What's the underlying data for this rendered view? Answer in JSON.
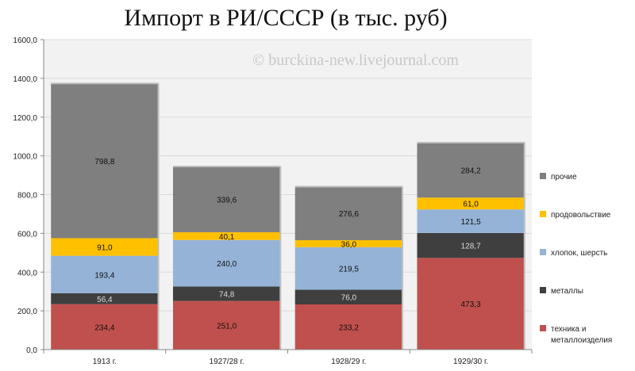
{
  "title": "Импорт в РИ/СССР (в тыс. руб)",
  "watermark": "© burckina-new.livejournal.com",
  "chart_data": {
    "type": "bar",
    "stacked": true,
    "title": "Импорт в РИ/СССР (в тыс. руб)",
    "categories": [
      "1913 г.",
      "1927/28 г.",
      "1928/29 г.",
      "1929/30 г."
    ],
    "ylim": [
      0,
      1600
    ],
    "yticks": [
      "0,0",
      "200,0",
      "400,0",
      "600,0",
      "800,0",
      "1000,0",
      "1200,0",
      "1400,0",
      "1600,0"
    ],
    "grid": true,
    "legend_position": "right",
    "series": [
      {
        "name": "техника и металлоизделия",
        "color": "#c0504d",
        "label_color": "#111111",
        "values": [
          234.4,
          251.0,
          233.2,
          473.3
        ],
        "labels": [
          "234,4",
          "251,0",
          "233,2",
          "473,3"
        ]
      },
      {
        "name": "металлы",
        "color": "#3f3f3f",
        "label_color": "#dddddd",
        "values": [
          56.4,
          74.8,
          76.0,
          128.7
        ],
        "labels": [
          "56,4",
          "74,8",
          "76,0",
          "128,7"
        ]
      },
      {
        "name": "хлопок, шерсть",
        "color": "#95b3d7",
        "label_color": "#111111",
        "values": [
          193.4,
          240.0,
          219.5,
          121.5
        ],
        "labels": [
          "193,4",
          "240,0",
          "219,5",
          "121,5"
        ]
      },
      {
        "name": "продовольствие",
        "color": "#ffc000",
        "label_color": "#111111",
        "values": [
          91.0,
          40.1,
          36.0,
          61.0
        ],
        "labels": [
          "91,0",
          "40,1",
          "36,0",
          "61,0"
        ]
      },
      {
        "name": "прочие",
        "color": "#7f7f7f",
        "label_color": "#111111",
        "values": [
          798.8,
          339.6,
          276.6,
          284.2
        ],
        "labels": [
          "798,8",
          "339,6",
          "276,6",
          "284,2"
        ]
      }
    ]
  }
}
